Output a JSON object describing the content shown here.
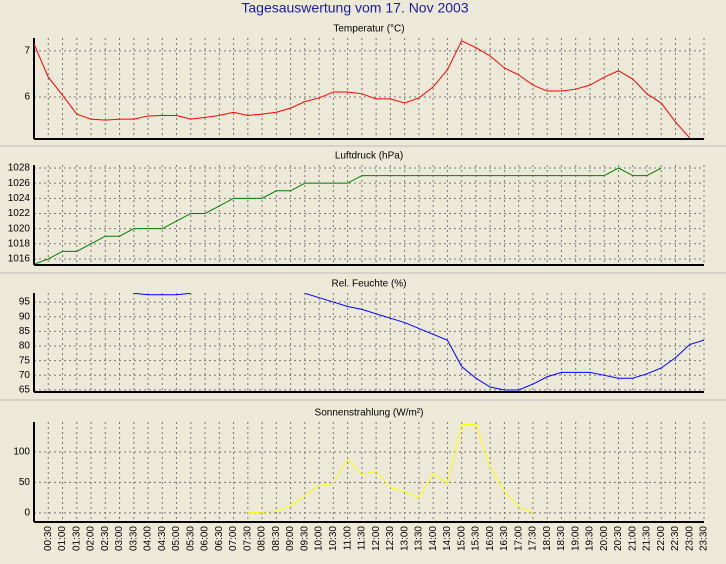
{
  "title": "Tagesauswertung vom 17. Nov 2003",
  "chart_data": [
    {
      "type": "line",
      "title": "Temperatur (°C)",
      "series": [
        {
          "color": "#ff0000",
          "values": [
            7.15,
            6.43,
            6.04,
            5.63,
            5.52,
            5.5,
            5.52,
            5.52,
            5.59,
            5.6,
            5.6,
            5.52,
            5.56,
            5.6,
            5.67,
            5.6,
            5.63,
            5.67,
            5.76,
            5.9,
            5.98,
            6.11,
            6.11,
            6.07,
            5.96,
            5.96,
            5.87,
            5.98,
            6.22,
            6.59,
            7.22,
            7.07,
            6.89,
            6.63,
            6.48,
            6.26,
            6.13,
            6.13,
            6.17,
            6.26,
            6.43,
            6.57,
            6.39,
            6.07,
            5.87,
            5.46,
            5.11,
            null
          ]
        }
      ],
      "ylim": [
        5.09,
        7.28
      ],
      "yticks": [
        6,
        7
      ],
      "grid": true
    },
    {
      "type": "line",
      "title": "Luftdruck (hPa)",
      "series": [
        {
          "color": "#008000",
          "values": [
            1015.3,
            1016,
            1017,
            1017,
            1018,
            1019,
            1019,
            1020,
            1020,
            1020,
            1021,
            1022,
            1022,
            1023,
            1024,
            1024,
            1024,
            1025,
            1025,
            1026,
            1026,
            1026,
            1026,
            1027,
            1027,
            1027,
            1027,
            1027,
            1027,
            1027,
            1027,
            1027,
            1027,
            1027,
            1027,
            1027,
            1027,
            1027,
            1027,
            1027,
            1027,
            1028,
            1027,
            1027,
            1028,
            null,
            null,
            null
          ]
        }
      ],
      "ylim": [
        1015.2,
        1028.4
      ],
      "yticks": [
        1016,
        1018,
        1020,
        1022,
        1024,
        1026,
        1028
      ],
      "grid": true
    },
    {
      "type": "line",
      "title": "Rel. Feuchte (%)",
      "series": [
        {
          "color": "#0000ff",
          "values": [
            null,
            null,
            null,
            null,
            null,
            null,
            null,
            98,
            97.5,
            97.5,
            97.5,
            98,
            null,
            null,
            null,
            null,
            null,
            null,
            null,
            98,
            96.5,
            95,
            93.5,
            92.5,
            91,
            89.5,
            88,
            86,
            84,
            82,
            73,
            69,
            66,
            65,
            65,
            67,
            69.5,
            71,
            71,
            71,
            70,
            69,
            69,
            70.5,
            72.5,
            76,
            80.5,
            82
          ]
        }
      ],
      "ylim": [
        64.3,
        98.1
      ],
      "yticks": [
        65,
        70,
        75,
        80,
        85,
        90,
        95
      ],
      "grid": true
    },
    {
      "type": "line",
      "title": "Sonnenstrahlung (W/m²)",
      "categories": [
        null,
        "00:30",
        "01:00",
        "01:30",
        "02:00",
        "02:30",
        "03:00",
        "03:30",
        "04:00",
        "04:30",
        "05:00",
        "05:30",
        "06:00",
        "06:30",
        "07:00",
        "07:30",
        "08:00",
        "08:30",
        "09:00",
        "09:30",
        "10:00",
        "10:30",
        "11:00",
        "11:30",
        "12:00",
        "12:30",
        "13:00",
        "13:30",
        "14:00",
        "14:30",
        "15:00",
        "15:30",
        "16:00",
        "16:30",
        "17:00",
        "17:30",
        "18:00",
        "18:30",
        "19:00",
        "19:30",
        "20:00",
        "20:30",
        "21:00",
        "21:30",
        "22:00",
        "22:30",
        "23:00",
        "23:30"
      ],
      "series": [
        {
          "color": "#ffff00",
          "values": [
            null,
            null,
            null,
            null,
            null,
            null,
            null,
            null,
            null,
            null,
            null,
            null,
            null,
            null,
            null,
            0,
            1,
            3,
            12,
            28,
            45,
            48,
            88,
            63,
            68,
            42,
            35,
            25,
            65,
            48,
            145,
            145,
            75,
            35,
            10,
            0,
            null,
            null,
            null,
            null,
            null,
            null,
            null,
            null,
            null,
            null,
            null,
            null
          ]
        }
      ],
      "ylim": [
        -15,
        149
      ],
      "yticks": [
        0,
        50,
        100
      ],
      "grid": true
    }
  ]
}
